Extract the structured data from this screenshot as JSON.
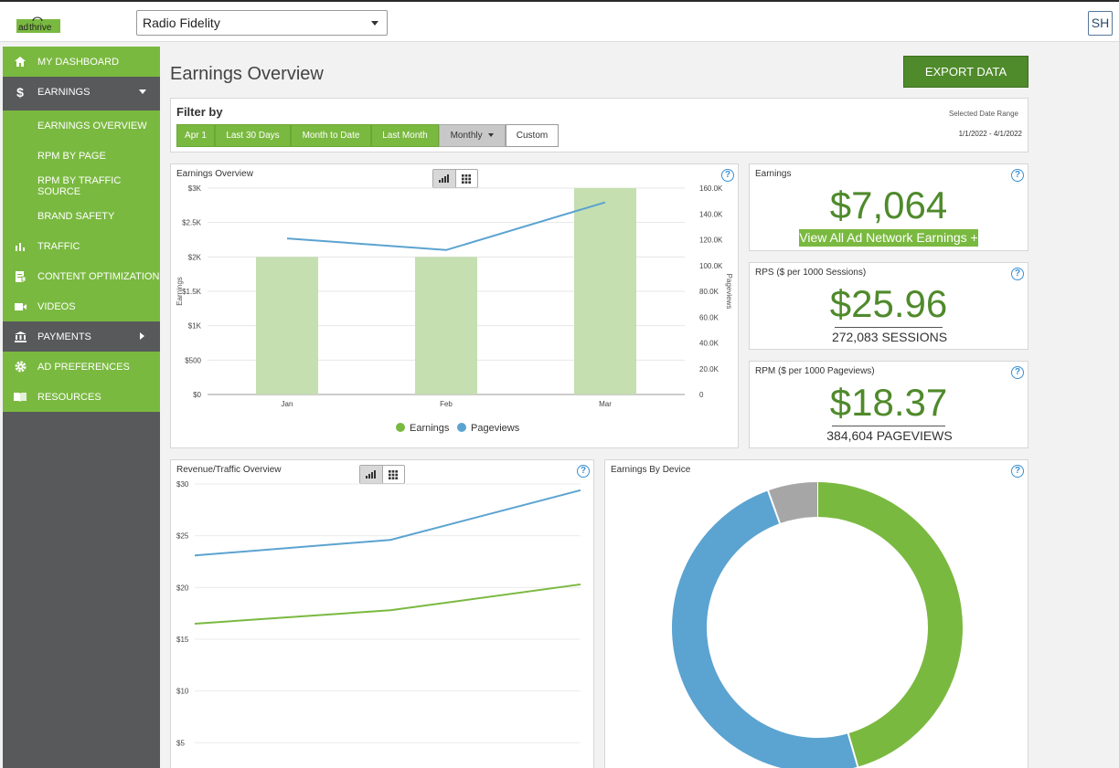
{
  "header": {
    "site_select_value": "Radio Fidelity",
    "user_initials": "SH"
  },
  "sidebar": {
    "items": [
      {
        "label": "MY DASHBOARD",
        "icon": "home-icon"
      },
      {
        "label": "EARNINGS",
        "icon": "dollar-icon"
      },
      {
        "label": "EARNINGS OVERVIEW"
      },
      {
        "label": "RPM BY PAGE"
      },
      {
        "label": "RPM BY TRAFFIC SOURCE"
      },
      {
        "label": "BRAND SAFETY"
      },
      {
        "label": "TRAFFIC",
        "icon": "bar-chart-icon"
      },
      {
        "label": "CONTENT OPTIMIZATION",
        "icon": "document-icon"
      },
      {
        "label": "VIDEOS",
        "icon": "video-icon"
      },
      {
        "label": "PAYMENTS",
        "icon": "bank-icon"
      },
      {
        "label": "AD PREFERENCES",
        "icon": "gear-icon"
      },
      {
        "label": "RESOURCES",
        "icon": "book-icon"
      }
    ]
  },
  "main": {
    "title": "Earnings Overview",
    "export_label": "EXPORT DATA"
  },
  "filter": {
    "label": "Filter by",
    "buttons": [
      "Apr 1",
      "Last 30 Days",
      "Month to Date",
      "Last Month",
      "Monthly",
      "Custom"
    ],
    "date_range_label": "Selected Date Range",
    "date_range_value": "1/1/2022 - 4/1/2022"
  },
  "earnings_card": {
    "title": "Earnings",
    "value": "$7,064",
    "link": "View All Ad Network Earnings +"
  },
  "rps_card": {
    "title": "RPS ($ per 1000 Sessions)",
    "value": "$25.96",
    "sub": "272,083 SESSIONS"
  },
  "rpm_card": {
    "title": "RPM ($ per 1000 Pageviews)",
    "value": "$18.37",
    "sub": "384,604 PAGEVIEWS"
  },
  "colors": {
    "green": "#7ab940",
    "bar_green": "#c5dfb0",
    "dark_green": "#4f8a2b",
    "blue": "#5ba3d0",
    "grey": "#a6a6a6",
    "sidebar": "#58595b"
  },
  "chart_data": [
    {
      "title": "Earnings Overview",
      "type": "bar",
      "categories": [
        "Jan",
        "Feb",
        "Mar"
      ],
      "ylabel": "Earnings",
      "y2label": "Pageviews",
      "ylim": [
        0,
        3000
      ],
      "y2lim": [
        0,
        160000
      ],
      "yticks": [
        "$0",
        "$500",
        "$1K",
        "$1.5K",
        "$2K",
        "$2.5K",
        "$3K"
      ],
      "y2ticks": [
        "0",
        "20.0K",
        "40.0K",
        "60.0K",
        "80.0K",
        "100.0K",
        "120.0K",
        "140.0K",
        "160.0K"
      ],
      "legend": [
        "Earnings",
        "Pageviews"
      ],
      "series": [
        {
          "name": "Earnings",
          "type": "bar",
          "values": [
            2000,
            2000,
            3000
          ]
        },
        {
          "name": "Pageviews",
          "type": "line",
          "values": [
            121000,
            112000,
            149000
          ]
        }
      ]
    },
    {
      "title": "Revenue/Traffic Overview",
      "type": "line",
      "ylim": [
        0,
        30
      ],
      "yticks": [
        "$5",
        "$10",
        "$15",
        "$20",
        "$25",
        "$30"
      ],
      "series": [
        {
          "values": [
            23.1,
            24.6,
            29.4
          ]
        },
        {
          "values": [
            16.5,
            17.8,
            20.3
          ]
        }
      ]
    },
    {
      "title": "Earnings By Device",
      "type": "pie",
      "slices": [
        {
          "value": 45.5
        },
        {
          "value": 49.0
        },
        {
          "value": 5.5
        }
      ]
    }
  ]
}
